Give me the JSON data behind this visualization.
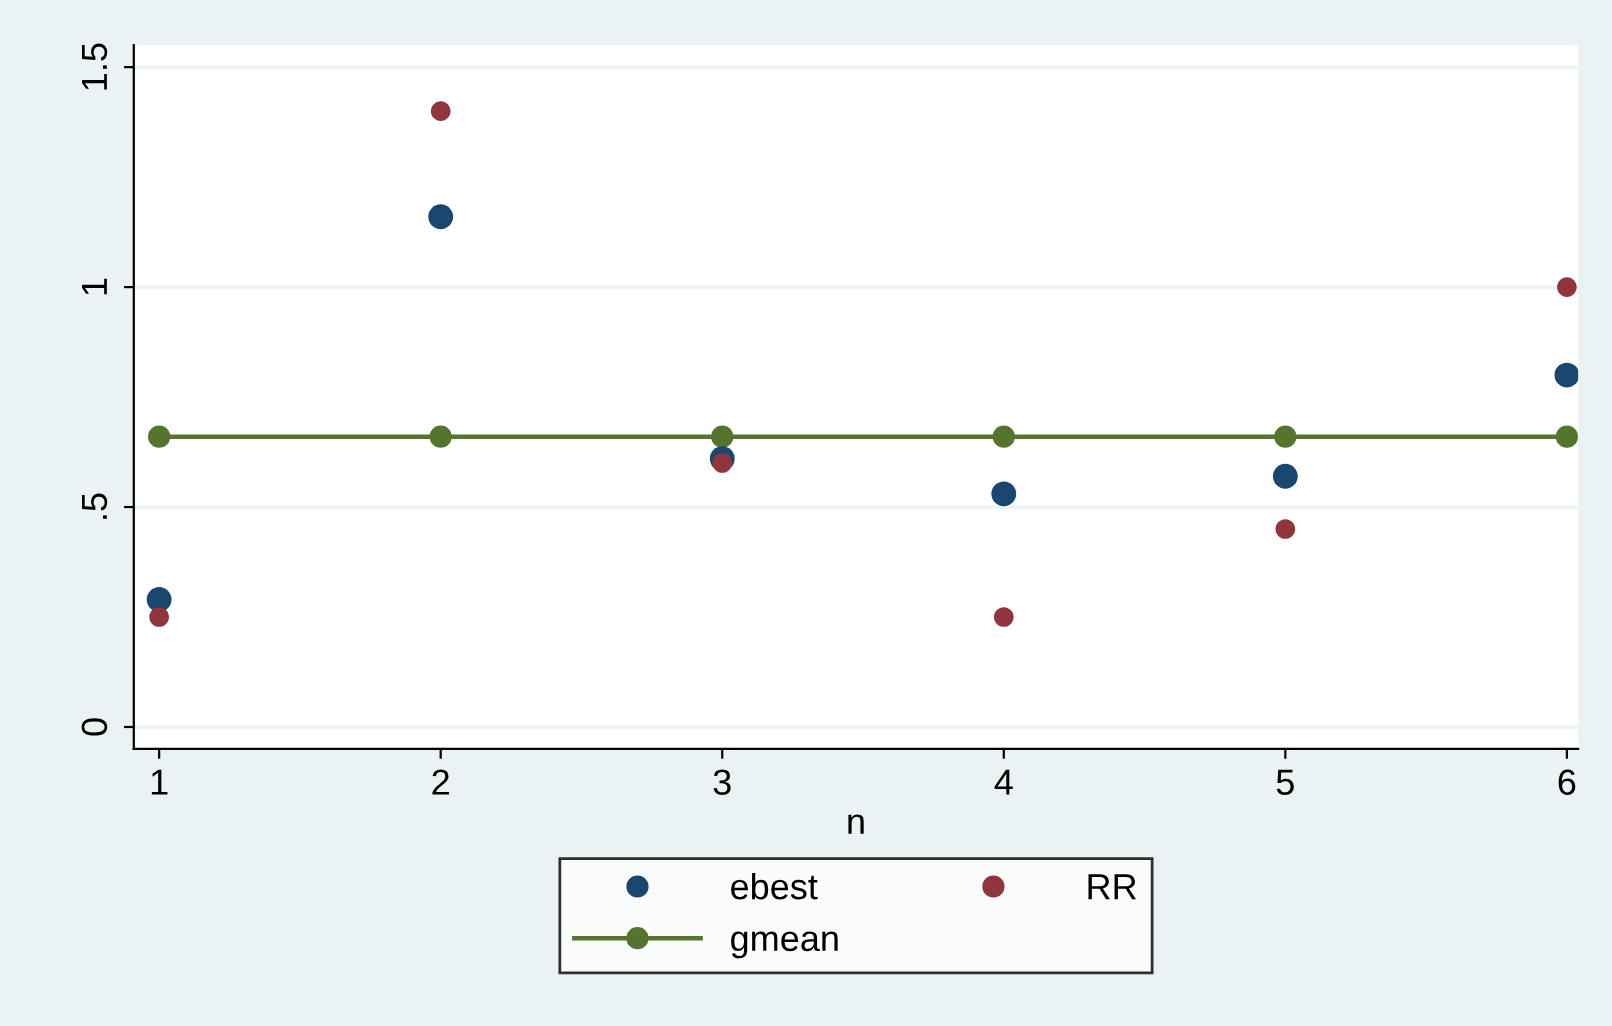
{
  "chart_data": {
    "type": "scatter",
    "xlabel": "n",
    "x": [
      1,
      2,
      3,
      4,
      5,
      6
    ],
    "series": [
      {
        "name": "ebest",
        "color": "#1a476f",
        "values": [
          0.29,
          1.16,
          0.61,
          0.53,
          0.57,
          0.8
        ]
      },
      {
        "name": "RR",
        "color": "#90353b",
        "values": [
          0.25,
          1.4,
          0.6,
          0.25,
          0.45,
          1.0
        ]
      },
      {
        "name": "gmean",
        "type": "line",
        "color": "#55752f",
        "values": [
          0.66,
          0.66,
          0.66,
          0.66,
          0.66,
          0.66
        ]
      }
    ],
    "xlim": [
      0.91,
      6.04
    ],
    "ylim": [
      -0.05,
      1.55
    ],
    "xticks": [
      1,
      2,
      3,
      4,
      5,
      6
    ],
    "yticks": [
      0,
      {
        "value": 0.5,
        "label": ".5"
      },
      1,
      1.5
    ],
    "grid": "y",
    "legend": "bottom",
    "marker": "circle"
  }
}
